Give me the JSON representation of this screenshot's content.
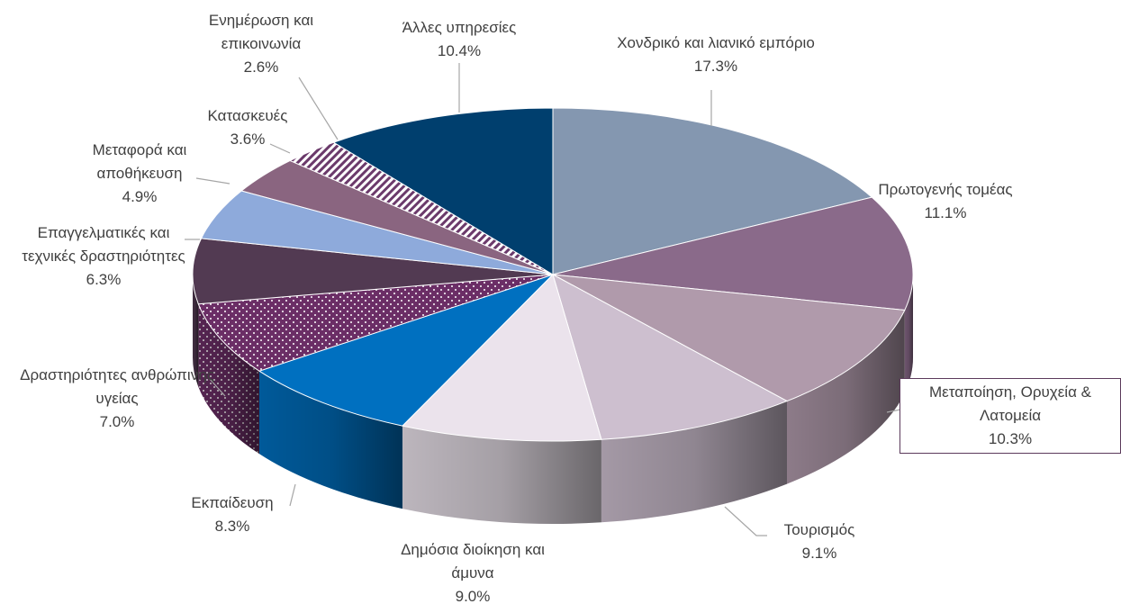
{
  "chart_data": {
    "type": "pie",
    "categories": [
      "Χονδρικό και λιανικό εμπόριο",
      "Πρωτογενής τομέας",
      "Μεταποίηση, Ορυχεία & Λατομεία",
      "Τουρισμός",
      "Δημόσια διοίκηση και άμυνα",
      "Εκπαίδευση",
      "Δραστηριότητες ανθρώπινης υγείας",
      "Επαγγελματικές και τεχνικές δραστηριότητες",
      "Μεταφορά και αποθήκευση",
      "Κατασκευές",
      "Ενημέρωση και επικοινωνία",
      "Άλλες υπηρεσίες"
    ],
    "values": [
      17.3,
      11.1,
      10.3,
      9.1,
      9.0,
      8.3,
      7.0,
      6.3,
      4.9,
      3.6,
      2.6,
      10.4
    ],
    "value_labels": [
      "17.3%",
      "11.1%",
      "10.3%",
      "9.1%",
      "9.0%",
      "8.3%",
      "7.0%",
      "6.3%",
      "4.9%",
      "3.6%",
      "2.6%",
      "10.4%"
    ],
    "colors": [
      "#8497b0",
      "#8a6a8a",
      "#b09aab",
      "#cdbfcf",
      "#ebe3ec",
      "#0070c0",
      "#6b2e66",
      "#523a52",
      "#8eaadb",
      "#8a6580",
      "#6b3a6b",
      "#003f6e"
    ],
    "patterns": [
      null,
      null,
      null,
      null,
      null,
      null,
      "dots",
      null,
      null,
      null,
      "hatch",
      null
    ]
  }
}
